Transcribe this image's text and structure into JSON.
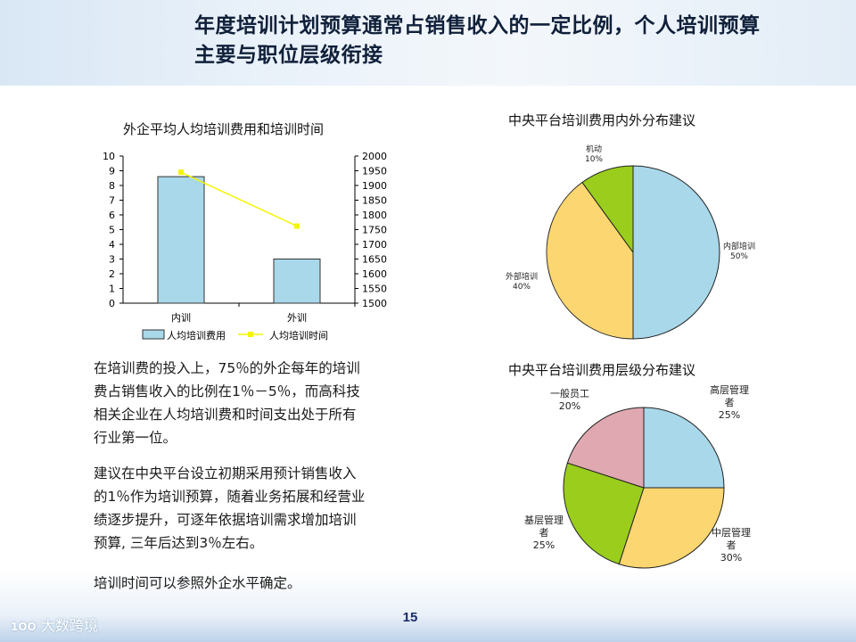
{
  "header": {
    "title_line1": "年度培训计划预算通常占销售收入的一定比例，个人培训预算",
    "title_line2": "主要与职位层级衔接"
  },
  "text": {
    "para1_lines": [
      "在培训费的投入上，75％的外企每年的培训",
      "费占销售收入的比例在1％－5％，而高科技",
      "相关企业在人均培训费和时间支出处于所有",
      "行业第一位。"
    ],
    "para2_lines": [
      "建议在中央平台设立初期采用预计销售收入",
      "的1％作为培训预算，随着业务拓展和经营业",
      "绩逐步提升，可逐年依据培训需求增加培训",
      "预算, 三年后达到3％左右。"
    ],
    "para3": "培训时间可以参照外企水平确定。"
  },
  "footer": {
    "page_number": "15",
    "logo_text": "大数跨境",
    "logo_mark": "1OO"
  },
  "chart_data": [
    {
      "type": "bar",
      "title": "外企平均人均培训费用和培训时间",
      "categories": [
        "内训",
        "外训"
      ],
      "series": [
        {
          "name": "人均培训费用",
          "type": "bar",
          "axis": "left",
          "values": [
            8.6,
            3.0
          ],
          "color": "#a8d8ea"
        },
        {
          "name": "人均培训时间",
          "type": "line",
          "axis": "right",
          "values": [
            1945,
            1762
          ],
          "color": "#f5f500"
        }
      ],
      "ylim_left": [
        0,
        10
      ],
      "ylim_right": [
        1500,
        2000
      ],
      "yticks_left": [
        "0",
        "1",
        "2",
        "3",
        "4",
        "5",
        "6",
        "7",
        "8",
        "9",
        "10"
      ],
      "yticks_right": [
        "1500",
        "1550",
        "1600",
        "1650",
        "1700",
        "1750",
        "1800",
        "1850",
        "1900",
        "1950",
        "2000"
      ],
      "legend": "bottom",
      "grid": false
    },
    {
      "type": "pie",
      "title": "中央平台培训费用内外分布建议",
      "slices": [
        {
          "label": "内部培训",
          "value": 50,
          "pct": "50%",
          "color": "#a8d8ea"
        },
        {
          "label": "外部培训",
          "value": 40,
          "pct": "40%",
          "color": "#fcd670"
        },
        {
          "label": "机动",
          "value": 10,
          "pct": "10%",
          "color": "#9acd1c"
        }
      ]
    },
    {
      "type": "pie",
      "title": "中央平台培训费用层级分布建议",
      "slices": [
        {
          "label": "高层管理者",
          "label_lines": [
            "高层管理",
            "者"
          ],
          "value": 25,
          "pct": "25%",
          "color": "#a8d8ea"
        },
        {
          "label": "中层管理者",
          "label_lines": [
            "中层管理",
            "者"
          ],
          "value": 30,
          "pct": "30%",
          "color": "#fcd670"
        },
        {
          "label": "基层管理者",
          "label_lines": [
            "基层管理",
            "者"
          ],
          "value": 25,
          "pct": "25%",
          "color": "#9acd1c"
        },
        {
          "label": "一般员工",
          "label_lines": [
            "一般员工"
          ],
          "value": 20,
          "pct": "20%",
          "color": "#e0a8b0"
        }
      ]
    }
  ]
}
